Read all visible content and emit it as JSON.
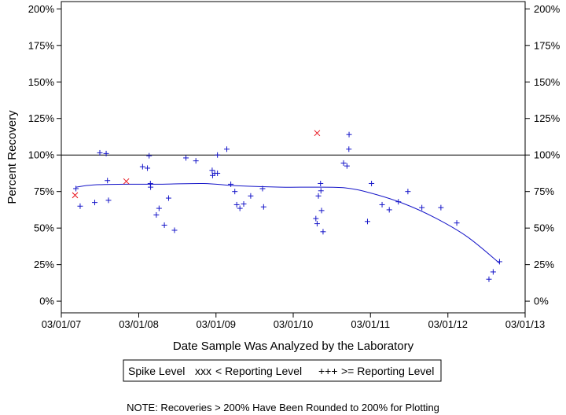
{
  "chart_data": {
    "type": "scatter",
    "xlabel": "Date Sample Was Analyzed by the Laboratory",
    "ylabel": "Percent Recovery",
    "x_ticks": [
      "03/01/07",
      "03/01/08",
      "03/01/09",
      "03/01/10",
      "03/01/11",
      "03/01/12",
      "03/01/13"
    ],
    "xlim": [
      "2007-03-01",
      "2013-03-01"
    ],
    "y_ticks": [
      0,
      25,
      50,
      75,
      100,
      125,
      150,
      175,
      200
    ],
    "y_tick_labels": [
      "0%",
      "25%",
      "50%",
      "75%",
      "100%",
      "125%",
      "150%",
      "175%",
      "200%"
    ],
    "ylim": [
      -8,
      205
    ],
    "reference_line": 100,
    "right_axis": true,
    "legend": {
      "title": "Spike Level",
      "entries": [
        {
          "label": "< Reporting Level",
          "symbol": "xxx",
          "color": "#e8141e"
        },
        {
          "label": ">= Reporting Level",
          "symbol": "+++",
          "color": "#1414c8"
        }
      ]
    },
    "series": [
      {
        "name": "< Reporting Level",
        "marker": "x",
        "color": "#e8141e",
        "points": [
          [
            "2007-05-05",
            72.5
          ],
          [
            "2008-01-02",
            82
          ],
          [
            "2010-06-22",
            115
          ]
        ]
      },
      {
        "name": ">= Reporting Level",
        "marker": "+",
        "color": "#1414c8",
        "points": [
          [
            "2007-05-09",
            77
          ],
          [
            "2007-05-29",
            65
          ],
          [
            "2007-08-06",
            67.5
          ],
          [
            "2007-08-30",
            101.5
          ],
          [
            "2007-09-29",
            101
          ],
          [
            "2007-10-05",
            82.5
          ],
          [
            "2007-10-10",
            69
          ],
          [
            "2008-03-19",
            92
          ],
          [
            "2008-04-11",
            91
          ],
          [
            "2008-04-19",
            99.5
          ],
          [
            "2008-04-25",
            80.5
          ],
          [
            "2008-04-26",
            78
          ],
          [
            "2008-05-23",
            59
          ],
          [
            "2008-06-05",
            63.5
          ],
          [
            "2008-06-30",
            52
          ],
          [
            "2008-07-20",
            70.5
          ],
          [
            "2008-08-17",
            48.5
          ],
          [
            "2008-10-10",
            98
          ],
          [
            "2008-11-26",
            96
          ],
          [
            "2009-02-11",
            89.5
          ],
          [
            "2009-02-13",
            86
          ],
          [
            "2009-02-23",
            87.5
          ],
          [
            "2009-03-08",
            100
          ],
          [
            "2009-03-08",
            87.5
          ],
          [
            "2009-04-21",
            104
          ],
          [
            "2009-05-10",
            80
          ],
          [
            "2009-05-29",
            75
          ],
          [
            "2009-06-07",
            66
          ],
          [
            "2009-06-22",
            63.5
          ],
          [
            "2009-07-10",
            66.5
          ],
          [
            "2009-08-12",
            72
          ],
          [
            "2009-10-07",
            77
          ],
          [
            "2009-10-12",
            64.5
          ],
          [
            "2010-06-16",
            56.5
          ],
          [
            "2010-06-22",
            53
          ],
          [
            "2010-06-28",
            72
          ],
          [
            "2010-07-08",
            80.5
          ],
          [
            "2010-07-10",
            75.5
          ],
          [
            "2010-07-13",
            62
          ],
          [
            "2010-07-20",
            47.5
          ],
          [
            "2010-10-25",
            94.5
          ],
          [
            "2010-11-10",
            92.5
          ],
          [
            "2010-11-19",
            104
          ],
          [
            "2010-11-20",
            114
          ],
          [
            "2011-02-15",
            54.5
          ],
          [
            "2011-03-06",
            80.5
          ],
          [
            "2011-04-25",
            66
          ],
          [
            "2011-05-29",
            62.5
          ],
          [
            "2011-07-11",
            68
          ],
          [
            "2011-08-25",
            75
          ],
          [
            "2011-10-30",
            64
          ],
          [
            "2012-01-28",
            64
          ],
          [
            "2012-04-12",
            53.5
          ],
          [
            "2012-09-11",
            15
          ],
          [
            "2012-10-01",
            20
          ],
          [
            "2012-10-31",
            27
          ]
        ]
      }
    ],
    "trend_line": {
      "name": "smoothed trend",
      "color": "#1414c8",
      "points": [
        [
          "2007-05-09",
          78
        ],
        [
          "2007-08-01",
          79.5
        ],
        [
          "2008-01-01",
          80
        ],
        [
          "2008-06-01",
          80
        ],
        [
          "2009-01-01",
          80.5
        ],
        [
          "2009-06-01",
          79
        ],
        [
          "2010-01-01",
          78
        ],
        [
          "2010-06-01",
          78
        ],
        [
          "2010-11-01",
          77.5
        ],
        [
          "2011-03-01",
          74
        ],
        [
          "2011-08-01",
          67
        ],
        [
          "2012-01-01",
          57
        ],
        [
          "2012-06-01",
          44
        ],
        [
          "2012-10-31",
          26
        ]
      ]
    },
    "note": "NOTE: Recoveries > 200% Have Been Rounded to 200% for Plotting"
  }
}
